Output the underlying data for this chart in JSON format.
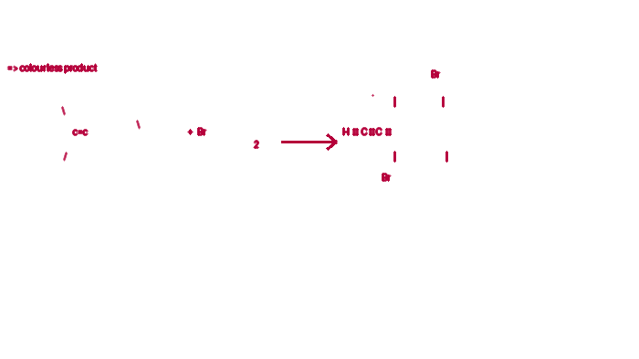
{
  "bg_color": "#ffffff",
  "ink_color": "#b5003a",
  "fig_width": 7.0,
  "fig_height": 3.93,
  "dpi": 100
}
